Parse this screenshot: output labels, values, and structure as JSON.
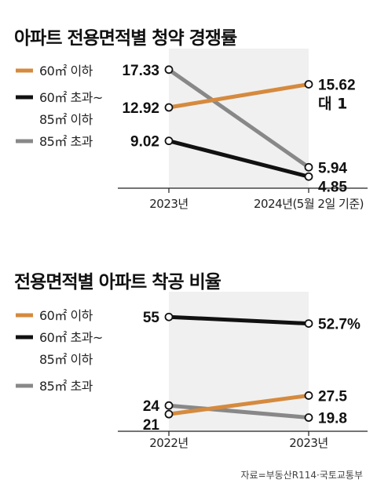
{
  "source": "자료=부동산R114·국토교통부",
  "colors": {
    "under_60": "#d58a3e",
    "between_60_85": "#111111",
    "over_85": "#888888",
    "plot_bg": "#f0f0f0"
  },
  "chart_data": [
    {
      "type": "line",
      "title": "아파트 전용면적별 청약 경쟁률",
      "categories": [
        "2023년",
        "2024년(5월 2일 기준)"
      ],
      "legend": [
        {
          "label": "60㎡ 이하",
          "color": "#d58a3e"
        },
        {
          "label": "60㎡ 초과~",
          "label2": "85㎡ 이하",
          "color": "#111111"
        },
        {
          "label": "85㎡ 초과",
          "color": "#888888"
        }
      ],
      "legend_position": "left",
      "grid": false,
      "ylim": [
        3.5,
        18.5
      ],
      "series": [
        {
          "name": "60㎡ 이하",
          "values": [
            12.92,
            15.62
          ],
          "labels": [
            "12.92",
            "15.62"
          ],
          "color": "#d58a3e"
        },
        {
          "name": "60㎡ 초과~85㎡ 이하",
          "values": [
            9.02,
            4.85
          ],
          "labels": [
            "9.02",
            "4.85"
          ],
          "color": "#111111"
        },
        {
          "name": "85㎡ 초과",
          "values": [
            17.33,
            5.94
          ],
          "labels": [
            "17.33",
            "5.94"
          ],
          "color": "#888888"
        }
      ],
      "annotations": [
        {
          "text": "대 1",
          "series": 0,
          "point": 1
        }
      ]
    },
    {
      "type": "line",
      "title": "전용면적별 아파트 착공 비율",
      "categories": [
        "2022년",
        "2023년"
      ],
      "legend": [
        {
          "label": "60㎡ 이하",
          "color": "#d58a3e"
        },
        {
          "label": "60㎡ 초과~",
          "label2": "85㎡ 이하",
          "color": "#111111"
        },
        {
          "label": "85㎡ 초과",
          "color": "#888888"
        }
      ],
      "legend_position": "left",
      "grid": false,
      "ylim": [
        15,
        60
      ],
      "series": [
        {
          "name": "60㎡ 이하",
          "values": [
            21,
            27.5
          ],
          "labels": [
            "21",
            "27.5"
          ],
          "color": "#d58a3e"
        },
        {
          "name": "60㎡ 초과~85㎡ 이하",
          "values": [
            55,
            52.7
          ],
          "labels": [
            "55",
            "52.7%"
          ],
          "color": "#111111"
        },
        {
          "name": "85㎡ 초과",
          "values": [
            24,
            19.8
          ],
          "labels": [
            "24",
            "19.8"
          ],
          "color": "#888888"
        }
      ]
    }
  ]
}
